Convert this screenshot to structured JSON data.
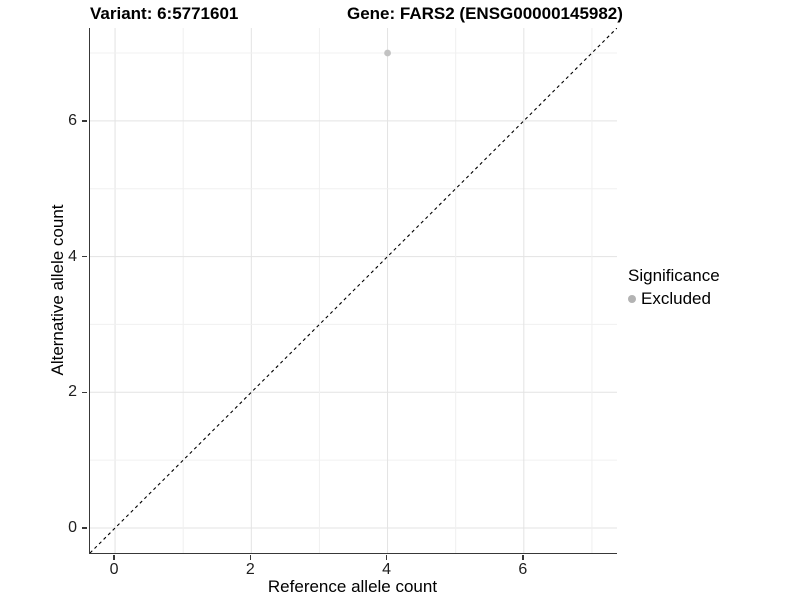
{
  "titles": {
    "variant": "Variant: 6:5771601",
    "gene": "Gene: FARS2 (ENSG00000145982)"
  },
  "chart_data": {
    "type": "scatter",
    "xlabel": "Reference allele count",
    "ylabel": "Alternative allele count",
    "xlim": [
      -0.368,
      7.368
    ],
    "ylim": [
      -0.368,
      7.368
    ],
    "xticks": [
      0,
      2,
      4,
      6
    ],
    "yticks": [
      0,
      2,
      4,
      6
    ],
    "grid_positions": [
      0,
      1,
      2,
      3,
      4,
      5,
      6,
      7
    ],
    "grid": true,
    "points": [
      {
        "x": 4,
        "y": 7,
        "series": "Excluded"
      }
    ],
    "identity_line": {
      "style": "dashed",
      "from": [
        -0.368,
        -0.368
      ],
      "to": [
        7.368,
        7.368
      ],
      "color": "#000000"
    },
    "legend": {
      "position": "right",
      "title": "Significance",
      "items": [
        {
          "label": "Excluded",
          "color": "#b3b3b3"
        }
      ]
    }
  },
  "colors": {
    "point": "#c2c2c2",
    "grid_major": "#e3e3e3",
    "grid_minor": "#f0f0f0",
    "axis_line": "#383838"
  }
}
